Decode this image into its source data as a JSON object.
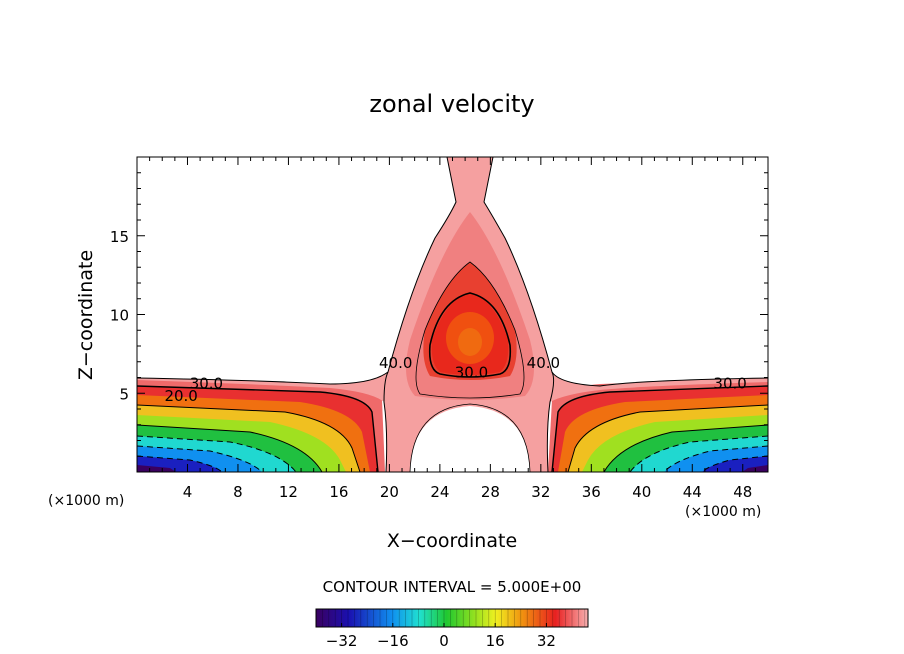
{
  "chart_data": {
    "type": "contour",
    "title": "zonal velocity",
    "xlabel": "X−coordinate",
    "ylabel": "Z−coordinate",
    "x_unit_left": "(×1000 m)",
    "x_unit_right": "(×1000 m)",
    "xlim": [
      0,
      50
    ],
    "ylim": [
      0,
      20
    ],
    "x_ticks": [
      4,
      8,
      12,
      16,
      20,
      24,
      28,
      32,
      36,
      40,
      44,
      48
    ],
    "y_ticks": [
      5,
      10,
      15
    ],
    "contour_interval_text": "CONTOUR INTERVAL = 5.000E+00",
    "colorbar": {
      "range": [
        -40,
        45
      ],
      "ticks": [
        -32,
        -16,
        0,
        16,
        32
      ],
      "tick_labels": [
        "−32",
        "−16",
        "0",
        "16",
        "32"
      ]
    },
    "contour_labels": [
      {
        "text": "30.0",
        "x": 5.5,
        "z": 5.3
      },
      {
        "text": "20.0",
        "x": 3.5,
        "z": 4.5
      },
      {
        "text": "40.0",
        "x": 20.5,
        "z": 6.6
      },
      {
        "text": "30.0",
        "x": 26.5,
        "z": 6.0
      },
      {
        "text": "40.0",
        "x": 32.2,
        "z": 6.6
      },
      {
        "text": "30.0",
        "x": 47.0,
        "z": 5.3
      }
    ],
    "colors": {
      "background": "#ffffff",
      "plume_light": "#f5a0a0",
      "plume_mid": "#ef6a6a",
      "core": "#e82a20",
      "core_center": "#f06010"
    }
  }
}
